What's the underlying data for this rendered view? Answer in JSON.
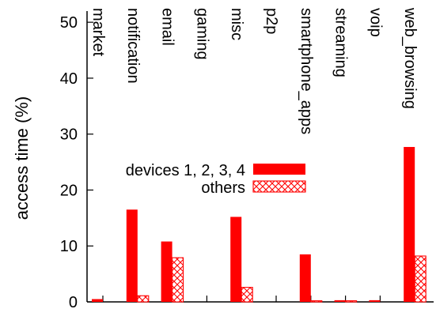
{
  "chart_data": {
    "type": "bar",
    "ylabel": "access time (%)",
    "ylim": [
      0,
      52
    ],
    "yticks": [
      0,
      10,
      20,
      30,
      40,
      50
    ],
    "categories": [
      "market",
      "notification",
      "email",
      "gaming",
      "misc",
      "p2p",
      "smartphone_apps",
      "streaming",
      "voip",
      "web_browsing"
    ],
    "series": [
      {
        "name": "devices 1, 2, 3, 4",
        "style": "solid",
        "color": "#ff0000",
        "values": [
          0.5,
          16.5,
          10.8,
          0,
          15.2,
          0,
          8.5,
          0.3,
          0.3,
          27.7
        ]
      },
      {
        "name": "others",
        "style": "crosshatch",
        "color": "#ff0000",
        "values": [
          0,
          1.1,
          7.9,
          0,
          2.6,
          0,
          0.2,
          0.2,
          0,
          8.2
        ]
      }
    ],
    "legend_position": "middle-left",
    "grid": false
  }
}
